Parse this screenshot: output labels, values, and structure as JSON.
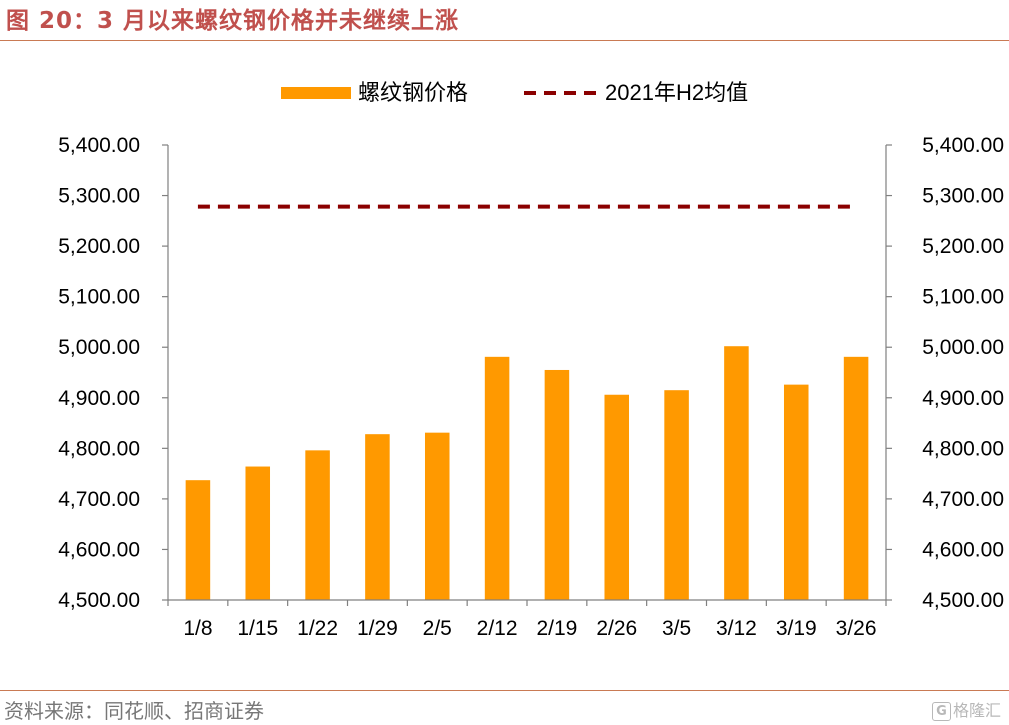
{
  "figure": {
    "title": "图 20：3 月以来螺纹钢价格并未继续上涨",
    "source": "资料来源：同花顺、招商证券",
    "watermark_glyph": "G",
    "watermark_text": "格隆汇"
  },
  "colors": {
    "title": "#c0504d",
    "bar": "#ff9900",
    "line": "#8b0000",
    "axis": "#808080",
    "text": "#000000",
    "rule": "#c97a54"
  },
  "chart_data": {
    "type": "bar",
    "title": "",
    "categories": [
      "1/8",
      "1/15",
      "1/22",
      "1/29",
      "2/5",
      "2/12",
      "2/19",
      "2/26",
      "3/5",
      "3/12",
      "3/19",
      "3/26"
    ],
    "series": [
      {
        "name": "螺纹钢价格",
        "type": "bar",
        "values": [
          4737,
          4764,
          4796,
          4828,
          4831,
          4981,
          4955,
          4906,
          4915,
          5002,
          4926,
          4981
        ]
      },
      {
        "name": "2021年H2均值",
        "type": "line",
        "style": "dashed",
        "values": [
          5278,
          5278,
          5278,
          5278,
          5278,
          5278,
          5278,
          5278,
          5278,
          5278,
          5278,
          5278
        ]
      }
    ],
    "yticks_left": [
      "4,500.00",
      "4,600.00",
      "4,700.00",
      "4,800.00",
      "4,900.00",
      "5,000.00",
      "5,100.00",
      "5,200.00",
      "5,300.00",
      "5,400.00"
    ],
    "yticks_right": [
      "4,500.00",
      "4,600.00",
      "4,700.00",
      "4,800.00",
      "4,900.00",
      "5,000.00",
      "5,100.00",
      "5,200.00",
      "5,300.00",
      "5,400.00"
    ],
    "ylim": [
      4500,
      5400
    ],
    "y2lim": [
      4500,
      5400
    ],
    "xlabel": "",
    "ylabel": "",
    "grid": false,
    "legend_position": "top"
  }
}
